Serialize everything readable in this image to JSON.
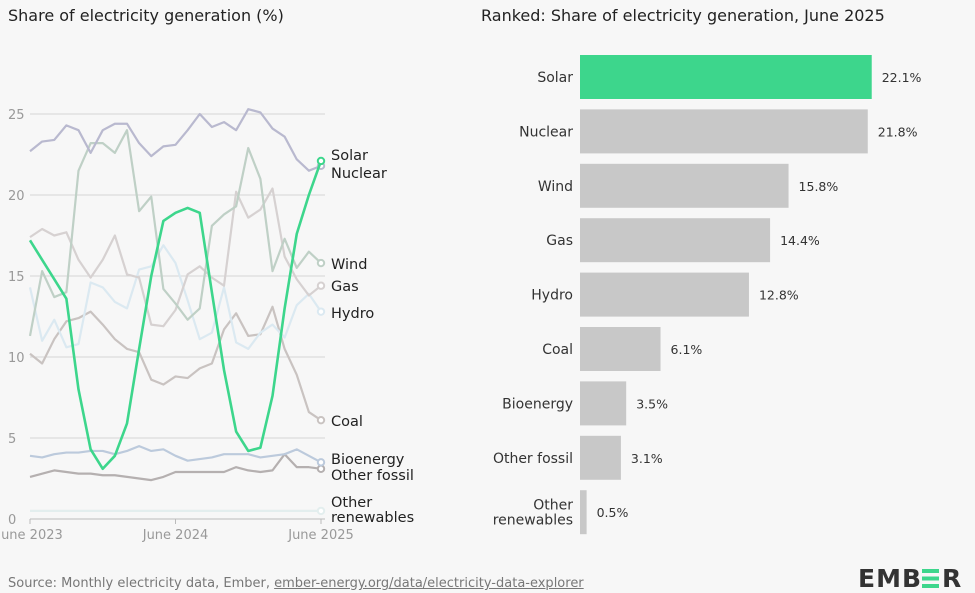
{
  "chart_data": [
    {
      "type": "line",
      "title": "Share of electricity generation (%)",
      "x": [
        "June 2023",
        "July 2023",
        "Aug 2023",
        "Sep 2023",
        "Oct 2023",
        "Nov 2023",
        "Dec 2023",
        "Jan 2024",
        "Feb 2024",
        "Mar 2024",
        "Apr 2024",
        "May 2024",
        "June 2024",
        "July 2024",
        "Aug 2024",
        "Sep 2024",
        "Oct 2024",
        "Nov 2024",
        "Dec 2024",
        "Jan 2025",
        "Feb 2025",
        "Mar 2025",
        "Apr 2025",
        "May 2025",
        "June 2025"
      ],
      "xticks": [
        "June 2023",
        "June 2024",
        "June 2025"
      ],
      "yticks": [
        0,
        5,
        10,
        15,
        20,
        25
      ],
      "ylim": [
        0,
        27
      ],
      "grid": true,
      "series": [
        {
          "name": "Solar",
          "color": "#3dd68c",
          "highlight": true,
          "values": [
            17.2,
            16.0,
            14.8,
            13.6,
            8.0,
            4.3,
            3.1,
            3.9,
            5.9,
            10.5,
            15.0,
            18.4,
            18.9,
            19.2,
            18.9,
            14.0,
            9.2,
            5.4,
            4.2,
            4.4,
            7.6,
            13.0,
            17.6,
            20.0,
            22.1
          ]
        },
        {
          "name": "Nuclear",
          "color": "#b9b9cf",
          "values": [
            22.7,
            23.3,
            23.4,
            24.3,
            24.0,
            22.6,
            24.0,
            24.4,
            24.4,
            23.2,
            22.4,
            23.0,
            23.1,
            24.0,
            25.0,
            24.2,
            24.5,
            24.0,
            25.3,
            25.1,
            24.1,
            23.6,
            22.2,
            21.5,
            21.8
          ]
        },
        {
          "name": "Wind",
          "color": "#bfd0c6",
          "values": [
            11.3,
            15.3,
            13.7,
            14.0,
            21.5,
            23.2,
            23.2,
            22.6,
            24.0,
            19.0,
            19.9,
            14.2,
            13.3,
            12.3,
            13.0,
            18.1,
            18.8,
            19.3,
            22.9,
            21.0,
            15.3,
            17.3,
            15.5,
            16.5,
            15.8
          ]
        },
        {
          "name": "Gas",
          "color": "#d6d1d1",
          "values": [
            17.4,
            17.9,
            17.5,
            17.7,
            16.0,
            14.9,
            16.0,
            17.5,
            15.1,
            14.9,
            12.0,
            11.9,
            12.9,
            15.1,
            15.6,
            14.9,
            14.4,
            20.2,
            18.6,
            19.1,
            20.4,
            16.2,
            14.8,
            13.8,
            14.4
          ]
        },
        {
          "name": "Hydro",
          "color": "#dbe9f1",
          "values": [
            14.3,
            11.0,
            12.3,
            10.6,
            10.8,
            14.6,
            14.3,
            13.4,
            13.0,
            15.4,
            15.6,
            16.9,
            15.8,
            13.5,
            11.1,
            11.5,
            14.3,
            10.9,
            10.5,
            11.5,
            12.0,
            11.2,
            13.2,
            13.9,
            12.8
          ]
        },
        {
          "name": "Coal",
          "color": "#c9c3c1",
          "values": [
            10.2,
            9.6,
            11.1,
            12.2,
            12.4,
            12.8,
            12.0,
            11.1,
            10.5,
            10.3,
            8.6,
            8.3,
            8.8,
            8.7,
            9.3,
            9.6,
            11.7,
            12.7,
            11.3,
            11.4,
            13.1,
            10.5,
            8.9,
            6.6,
            6.1
          ]
        },
        {
          "name": "Bioenergy",
          "color": "#bccadc",
          "values": [
            3.9,
            3.8,
            4.0,
            4.1,
            4.1,
            4.2,
            4.2,
            4.0,
            4.2,
            4.5,
            4.2,
            4.3,
            3.9,
            3.6,
            3.7,
            3.8,
            4.0,
            4.0,
            4.0,
            3.8,
            3.9,
            4.0,
            4.3,
            3.9,
            3.5
          ]
        },
        {
          "name": "Other fossil",
          "color": "#b5b0b0",
          "values": [
            2.6,
            2.8,
            3.0,
            2.9,
            2.8,
            2.8,
            2.7,
            2.7,
            2.6,
            2.5,
            2.4,
            2.6,
            2.9,
            2.9,
            2.9,
            2.9,
            2.9,
            3.2,
            3.0,
            2.9,
            3.0,
            4.0,
            3.2,
            3.2,
            3.1
          ]
        },
        {
          "name": "Other renewables",
          "color": "#e3eeee",
          "values": [
            0.5,
            0.5,
            0.5,
            0.5,
            0.5,
            0.5,
            0.5,
            0.5,
            0.5,
            0.5,
            0.5,
            0.5,
            0.5,
            0.5,
            0.5,
            0.5,
            0.5,
            0.5,
            0.5,
            0.5,
            0.5,
            0.5,
            0.5,
            0.5,
            0.5
          ]
        }
      ],
      "end_labels": [
        "Solar",
        "Nuclear",
        "Wind",
        "Gas",
        "Hydro",
        "Coal",
        "Bioenergy",
        "Other fossil",
        "Other renewables"
      ]
    },
    {
      "type": "bar",
      "orientation": "horizontal",
      "title": "Ranked: Share of electricity generation, June 2025",
      "categories": [
        "Solar",
        "Nuclear",
        "Wind",
        "Gas",
        "Hydro",
        "Coal",
        "Bioenergy",
        "Other fossil",
        "Other renewables"
      ],
      "values": [
        22.1,
        21.8,
        15.8,
        14.4,
        12.8,
        6.1,
        3.5,
        3.1,
        0.5
      ],
      "value_labels": [
        "22.1%",
        "21.8%",
        "15.8%",
        "14.4%",
        "12.8%",
        "6.1%",
        "3.5%",
        "3.1%",
        "0.5%"
      ],
      "colors": {
        "highlight": "#3dd68c",
        "default": "#c8c8c8"
      }
    }
  ],
  "footer": {
    "source_prefix": "Source: Monthly electricity data, Ember, ",
    "source_link": "ember-energy.org/data/electricity-data-explorer",
    "logo": "EMBER"
  }
}
